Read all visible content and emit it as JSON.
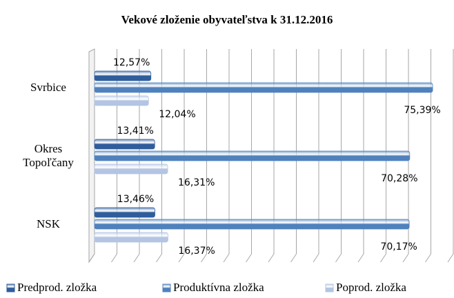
{
  "chart_data": {
    "type": "bar",
    "orientation": "horizontal",
    "title": "Vekové zloženie obyvateľstva  k 31.12.2016",
    "categories": [
      "Svrbice",
      "Okres\nTopoľčany",
      "NSK"
    ],
    "series": [
      {
        "name": "Predprod. zložka",
        "color": "#2f5d9c",
        "values": [
          12.57,
          13.41,
          13.46
        ],
        "value_labels": [
          "12,57%",
          "13,41%",
          "13,46%"
        ]
      },
      {
        "name": "Produktívna zložka",
        "color": "#4f81bd",
        "values": [
          75.39,
          70.28,
          70.17
        ],
        "value_labels": [
          "75,39%",
          "70,28%",
          "70,17%"
        ]
      },
      {
        "name": "Poprod. zložka",
        "color": "#b3c5e3",
        "values": [
          12.04,
          16.31,
          16.37
        ],
        "value_labels": [
          "12,04%",
          "16,31%",
          "16,37%"
        ]
      }
    ],
    "xlim": [
      0,
      80
    ],
    "xticks": [
      0,
      5,
      10,
      15,
      20,
      25,
      30,
      35,
      40,
      45,
      50,
      55,
      60,
      65,
      70,
      75,
      80
    ],
    "grid": true,
    "legend": "bottom"
  }
}
